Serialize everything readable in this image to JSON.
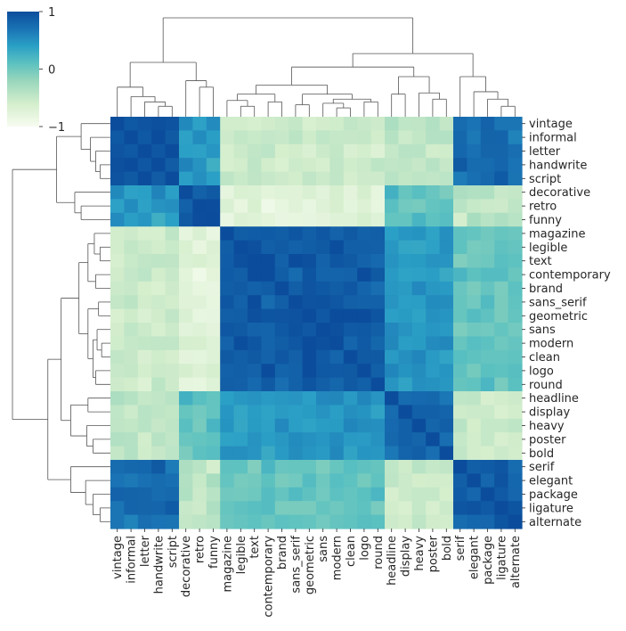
{
  "chart_data": {
    "type": "heatmap",
    "title": "",
    "labels": [
      "vintage",
      "informal",
      "letter",
      "handwrite",
      "script",
      "decorative",
      "retro",
      "funny",
      "magazine",
      "legible",
      "text",
      "contemporary",
      "brand",
      "sans_serif",
      "geometric",
      "sans",
      "modern",
      "clean",
      "logo",
      "round",
      "headline",
      "display",
      "heavy",
      "poster",
      "bold",
      "serif",
      "elegant",
      "package",
      "ligature",
      "alternate"
    ],
    "colorbar": {
      "min": -1,
      "max": 1,
      "ticks": [
        -1,
        0,
        1
      ],
      "tick_labels": [
        "−1",
        "0",
        "1"
      ],
      "colormap": "YlGnBu"
    },
    "clusters": [
      {
        "name": "informal",
        "members": [
          "vintage",
          "informal",
          "letter",
          "handwrite",
          "script"
        ]
      },
      {
        "name": "decorative",
        "members": [
          "decorative",
          "retro",
          "funny"
        ]
      },
      {
        "name": "modern",
        "members": [
          "magazine",
          "legible",
          "text",
          "contemporary",
          "brand",
          "sans_serif",
          "geometric",
          "sans",
          "modern",
          "clean",
          "logo",
          "round"
        ]
      },
      {
        "name": "display",
        "members": [
          "headline",
          "display",
          "heavy",
          "poster",
          "bold"
        ]
      },
      {
        "name": "elegant",
        "members": [
          "serif",
          "elegant",
          "package",
          "ligature",
          "alternate"
        ]
      }
    ],
    "block_values": {
      "informal-informal": 0.92,
      "informal-decorative": 0.45,
      "informal-modern": -0.55,
      "informal-display": -0.45,
      "informal-elegant": 0.75,
      "decorative-decorative": 0.8,
      "decorative-modern": -0.75,
      "decorative-display": 0.1,
      "decorative-elegant": -0.45,
      "modern-modern": 0.85,
      "modern-display": 0.45,
      "modern-elegant": 0.05,
      "display-display": 0.75,
      "display-elegant": -0.55,
      "elegant-elegant": 0.8
    },
    "row_dendrogram": "left",
    "col_dendrogram": "top"
  }
}
